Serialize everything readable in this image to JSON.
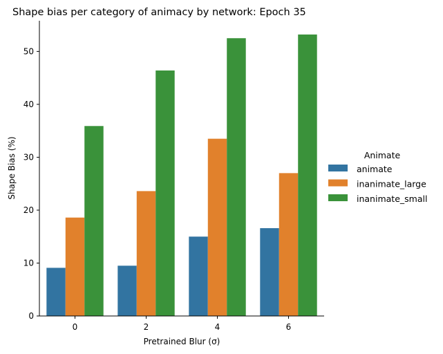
{
  "chart_data": {
    "type": "bar",
    "title": "Shape bias per category of animacy by network: Epoch 35",
    "xlabel": "Pretrained Blur (σ)",
    "ylabel": "Shape Bias (%)",
    "categories": [
      "0",
      "2",
      "4",
      "6"
    ],
    "ylim": [
      0,
      55.8
    ],
    "yticks": [
      0,
      10,
      20,
      30,
      40,
      50
    ],
    "grid": false,
    "legend_title": "Animate",
    "legend_position": "right",
    "series": [
      {
        "name": "animate",
        "color": "#3274a1",
        "values": [
          9.1,
          9.5,
          15.0,
          16.6
        ]
      },
      {
        "name": "inanimate_large",
        "color": "#e1812c",
        "values": [
          18.6,
          23.6,
          33.5,
          27.0
        ]
      },
      {
        "name": "inanimate_small",
        "color": "#3a923a",
        "values": [
          35.9,
          46.4,
          52.5,
          53.2
        ]
      }
    ]
  }
}
